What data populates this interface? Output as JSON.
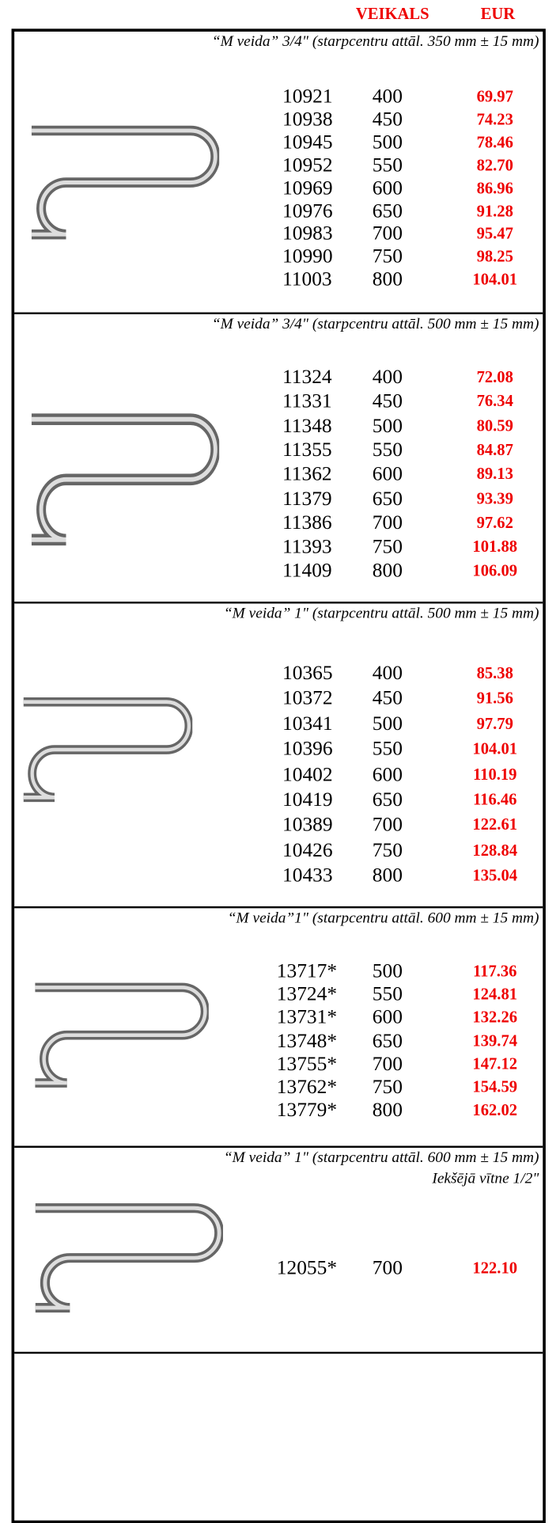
{
  "header": {
    "columns": [
      "VEIKALS",
      "EUR"
    ]
  },
  "sections": [
    {
      "title": "“M veida” 3/4\" (starpcentru attāl. 350 mm ± 15 mm)",
      "rows": [
        [
          "10921",
          "400",
          "69.97"
        ],
        [
          "10938",
          "450",
          "74.23"
        ],
        [
          "10945",
          "500",
          "78.46"
        ],
        [
          "10952",
          "550",
          "82.70"
        ],
        [
          "10969",
          "600",
          "86.96"
        ],
        [
          "10976",
          "650",
          "91.28"
        ],
        [
          "10983",
          "700",
          "95.47"
        ],
        [
          "10990",
          "750",
          "98.25"
        ],
        [
          "11003",
          "800",
          "104.01"
        ]
      ]
    },
    {
      "title": "“M veida” 3/4\" (starpcentru attāl. 500 mm ± 15 mm)",
      "rows": [
        [
          "11324",
          "400",
          "72.08"
        ],
        [
          "11331",
          "450",
          "76.34"
        ],
        [
          "11348",
          "500",
          "80.59"
        ],
        [
          "11355",
          "550",
          "84.87"
        ],
        [
          "11362",
          "600",
          "89.13"
        ],
        [
          "11379",
          "650",
          "93.39"
        ],
        [
          "11386",
          "700",
          "97.62"
        ],
        [
          "11393",
          "750",
          "101.88"
        ],
        [
          "11409",
          "800",
          "106.09"
        ]
      ]
    },
    {
      "title": "“M veida” 1\" (starpcentru attāl. 500 mm ± 15 mm)",
      "rows": [
        [
          "10365",
          "400",
          "85.38"
        ],
        [
          "10372",
          "450",
          "91.56"
        ],
        [
          "10341",
          "500",
          "97.79"
        ],
        [
          "10396",
          "550",
          "104.01"
        ],
        [
          "10402",
          "600",
          "110.19"
        ],
        [
          "10419",
          "650",
          "116.46"
        ],
        [
          "10389",
          "700",
          "122.61"
        ],
        [
          "10426",
          "750",
          "128.84"
        ],
        [
          "10433",
          "800",
          "135.04"
        ]
      ]
    },
    {
      "title": "“M veida”1\" (starpcentru attāl. 600 mm ± 15 mm)",
      "rows": [
        [
          "13717*",
          "500",
          "117.36"
        ],
        [
          "13724*",
          "550",
          "124.81"
        ],
        [
          "13731*",
          "600",
          "132.26"
        ],
        [
          "13748*",
          "650",
          "139.74"
        ],
        [
          "13755*",
          "700",
          "147.12"
        ],
        [
          "13762*",
          "750",
          "154.59"
        ],
        [
          "13779*",
          "800",
          "162.02"
        ]
      ]
    },
    {
      "title": "“M veida” 1\" (starpcentru attāl. 600 mm ± 15 mm)",
      "subtitle": "Iekšējā vītne 1/2\"",
      "rows": [
        [
          "12055*",
          "700",
          "122.10"
        ]
      ]
    }
  ]
}
